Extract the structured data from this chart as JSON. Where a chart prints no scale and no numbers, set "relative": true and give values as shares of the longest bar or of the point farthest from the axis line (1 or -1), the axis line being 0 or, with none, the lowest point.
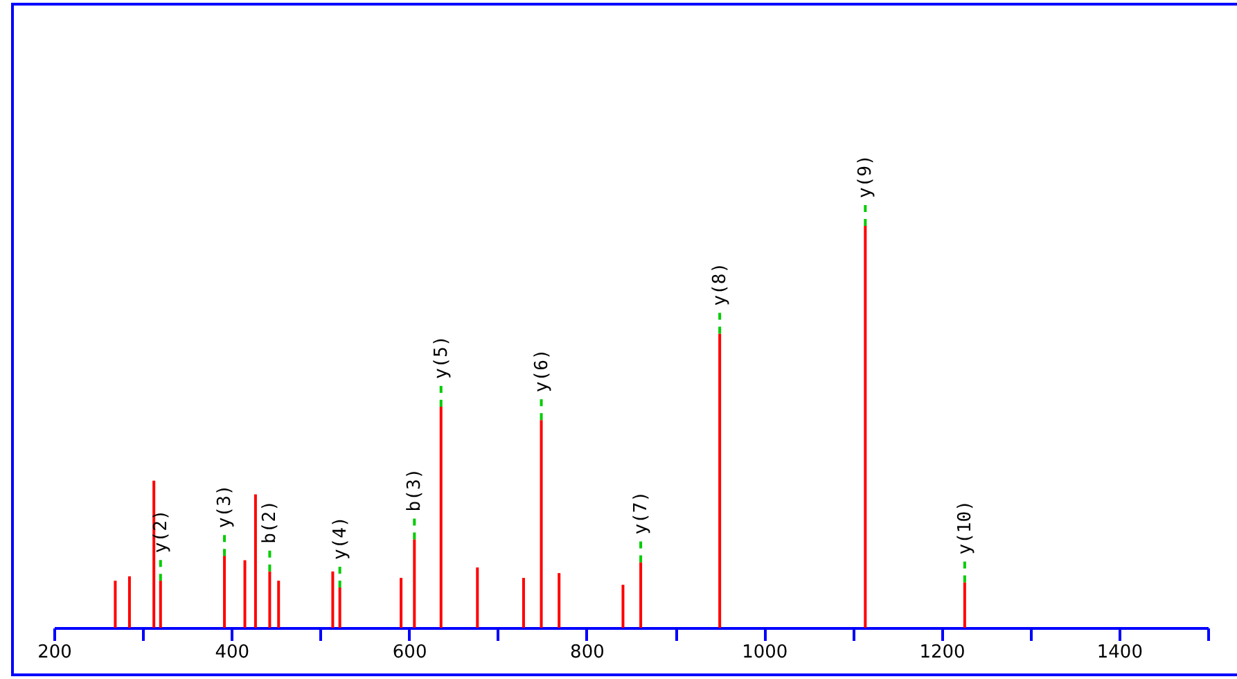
{
  "chart_data": {
    "type": "bar",
    "relative": true,
    "x": [
      269,
      285,
      312.5,
      320,
      392,
      415,
      427,
      443,
      453,
      514,
      522,
      591,
      606,
      636,
      677,
      729,
      749,
      769,
      841,
      861,
      950,
      1114,
      1226
    ],
    "series": [
      {
        "color": "#ff0000",
        "values": [
          0.117,
          0.128,
          0.366,
          0.117,
          0.179,
          0.168,
          0.332,
          0.14,
          0.117,
          0.14,
          0.1,
          0.124,
          0.22,
          0.55,
          0.15,
          0.124,
          0.517,
          0.136,
          0.107,
          0.163,
          0.732,
          1,
          0.113
        ]
      }
    ],
    "xlim": [
      200,
      1500
    ],
    "xticks": [
      200,
      {
        "value": 300,
        "label": null
      },
      400,
      {
        "value": 500,
        "label": null
      },
      600,
      {
        "value": 700,
        "label": null
      },
      800,
      {
        "value": 900,
        "label": null
      },
      1000,
      {
        "value": 1100,
        "label": null
      },
      1200,
      {
        "value": 1300,
        "label": null
      },
      1400,
      {
        "value": 1500,
        "label": null
      }
    ],
    "annotations": [
      {
        "text": "y(2)",
        "x": 320,
        "y": 0.117
      },
      {
        "text": "y(3)",
        "x": 392,
        "y": 0.179
      },
      {
        "text": "b(2)",
        "x": 443,
        "y": 0.14
      },
      {
        "text": "y(4)",
        "x": 522,
        "y": 0.1
      },
      {
        "text": "b(3)",
        "x": 606,
        "y": 0.22
      },
      {
        "text": "y(5)",
        "x": 636,
        "y": 0.55
      },
      {
        "text": "y(6)",
        "x": 749,
        "y": 0.517
      },
      {
        "text": "y(7)",
        "x": 861,
        "y": 0.163
      },
      {
        "text": "y(8)",
        "x": 950,
        "y": 0.732
      },
      {
        "text": "y(9)",
        "x": 1114,
        "y": 1
      },
      {
        "text": "y(10)",
        "x": 1226,
        "y": 0.113
      }
    ]
  }
}
